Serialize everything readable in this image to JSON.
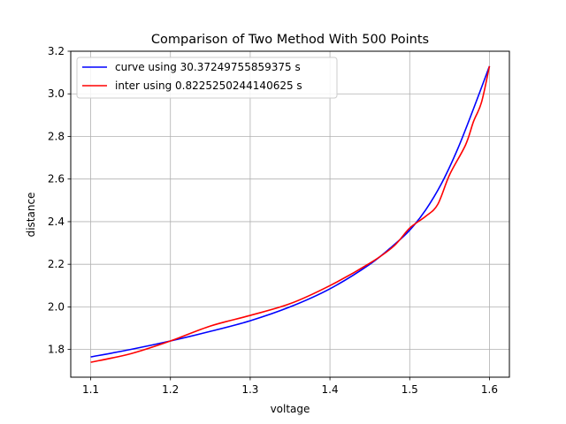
{
  "chart_data": {
    "type": "line",
    "title": "Comparison of Two Method With 500 Points",
    "xlabel": "voltage",
    "ylabel": "distance",
    "xlim": [
      1.075,
      1.625
    ],
    "ylim": [
      1.67,
      3.2
    ],
    "xticks": [
      1.1,
      1.2,
      1.3,
      1.4,
      1.5,
      1.6
    ],
    "xtick_labels": [
      "1.1",
      "1.2",
      "1.3",
      "1.4",
      "1.5",
      "1.6"
    ],
    "yticks": [
      1.8,
      2.0,
      2.2,
      2.4,
      2.6,
      2.8,
      3.0,
      3.2
    ],
    "ytick_labels": [
      "1.8",
      "2.0",
      "2.2",
      "2.4",
      "2.6",
      "2.8",
      "3.0",
      "3.2"
    ],
    "grid": true,
    "legend_position": "upper-left",
    "series": [
      {
        "name": "curve using 30.37249755859375 s",
        "color": "#0000ff",
        "x": [
          1.1,
          1.15,
          1.2,
          1.25,
          1.3,
          1.35,
          1.4,
          1.45,
          1.48,
          1.5,
          1.52,
          1.54,
          1.56,
          1.58,
          1.6
        ],
        "y": [
          1.765,
          1.8,
          1.84,
          1.885,
          1.935,
          2.0,
          2.085,
          2.2,
          2.29,
          2.36,
          2.455,
          2.58,
          2.74,
          2.93,
          3.13
        ]
      },
      {
        "name": "inter using 0.8225250244140625 s",
        "color": "#ff0000",
        "x": [
          1.1,
          1.15,
          1.2,
          1.25,
          1.3,
          1.35,
          1.4,
          1.45,
          1.48,
          1.5,
          1.52,
          1.535,
          1.55,
          1.57,
          1.58,
          1.59,
          1.6
        ],
        "y": [
          1.74,
          1.78,
          1.84,
          1.91,
          1.96,
          2.015,
          2.1,
          2.205,
          2.285,
          2.37,
          2.425,
          2.48,
          2.62,
          2.76,
          2.87,
          2.96,
          3.13
        ]
      }
    ]
  }
}
